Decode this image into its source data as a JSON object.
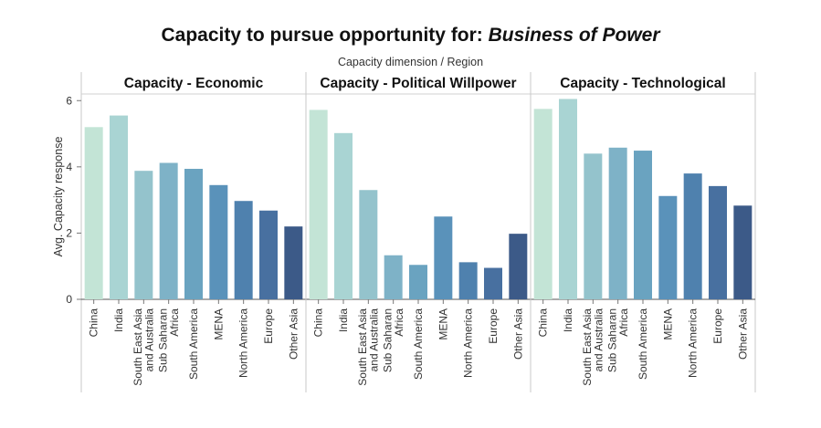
{
  "header": {
    "title_prefix": "Capacity to pursue opportunity for: ",
    "title_emphasis": "Business of Power",
    "column_header": "Capacity dimension  /  Region"
  },
  "chart_data": {
    "type": "bar",
    "ylabel": "Avg. Capacity response",
    "ylim": [
      0,
      6.2
    ],
    "yticks": [
      0,
      2,
      4,
      6
    ],
    "grid": false,
    "categories": [
      "China",
      "India",
      "South East Asia and Australia",
      "Sub Saharan Africa",
      "South America",
      "MENA",
      "North America",
      "Europe",
      "Other Asia"
    ],
    "category_labels": [
      [
        "China"
      ],
      [
        "India"
      ],
      [
        "South East Asia",
        "and Australia"
      ],
      [
        "Sub Saharan",
        "Africa"
      ],
      [
        "South America"
      ],
      [
        "MENA"
      ],
      [
        "North America"
      ],
      [
        "Europe"
      ],
      [
        "Other Asia"
      ]
    ],
    "colors": [
      "#c3e4d6",
      "#a9d4d3",
      "#94c3cc",
      "#7eb2c7",
      "#6aa3c0",
      "#5a92ba",
      "#4f81ae",
      "#4870a0",
      "#3c5a88"
    ],
    "panels": [
      {
        "name": "Capacity - Economic",
        "values": [
          5.2,
          5.55,
          3.88,
          4.12,
          3.94,
          3.45,
          2.97,
          2.68,
          2.2
        ]
      },
      {
        "name": "Capacity - Political Willpower",
        "values": [
          5.72,
          5.02,
          3.3,
          1.33,
          1.04,
          2.5,
          1.12,
          0.95,
          1.98
        ]
      },
      {
        "name": "Capacity - Technological",
        "values": [
          5.75,
          6.05,
          4.4,
          4.58,
          4.49,
          3.12,
          3.8,
          3.42,
          2.83
        ]
      }
    ]
  }
}
